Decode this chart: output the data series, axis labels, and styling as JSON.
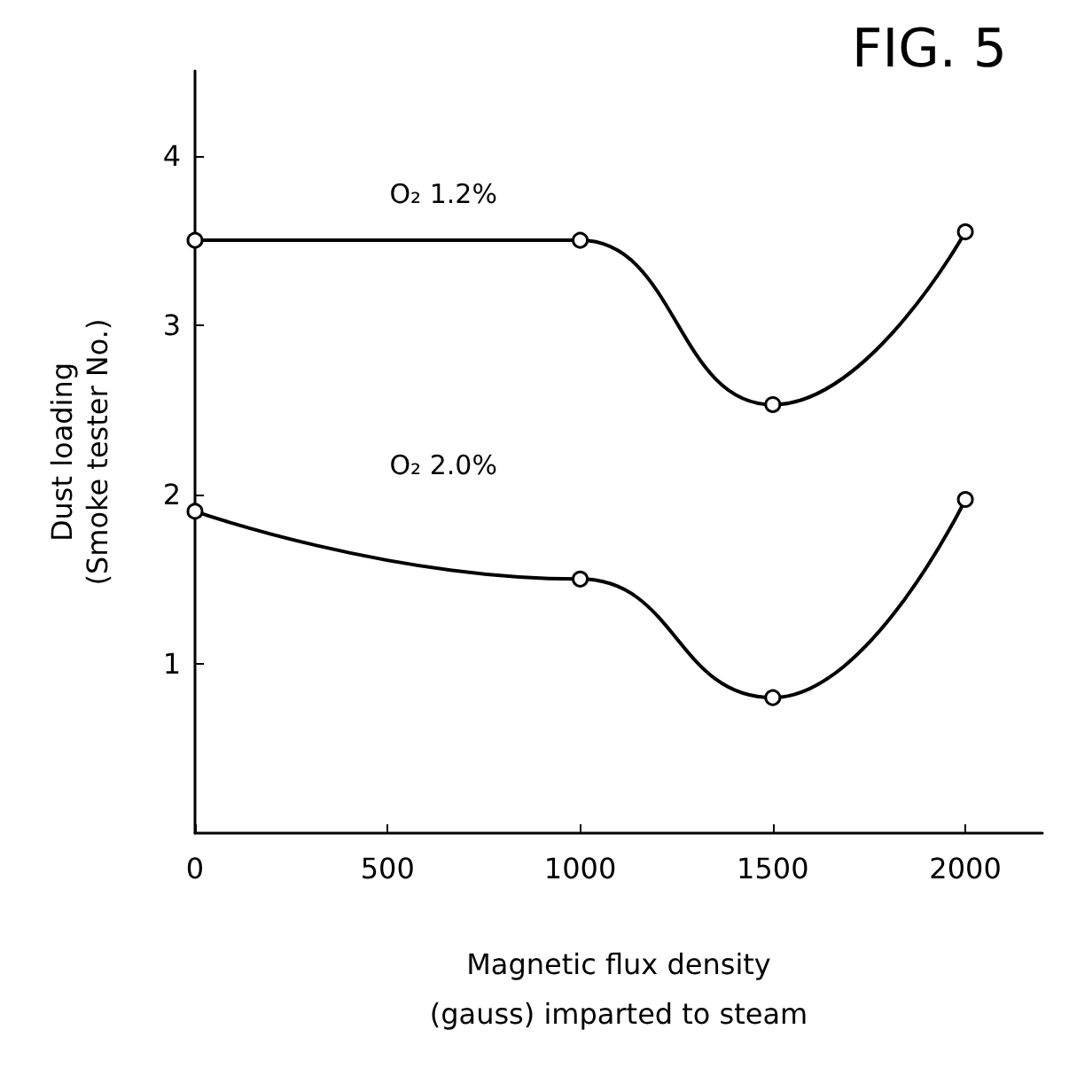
{
  "chart_data": {
    "type": "line",
    "title": "FIG. 5",
    "xlabel": "Magnetic flux density\n(gauss) imparted to steam",
    "ylabel": "Dust loading\n(Smoke tester No.)",
    "x": [
      0,
      1000,
      1500,
      2000
    ],
    "series": [
      {
        "name": "O₂ 1.2%",
        "color": "#000000",
        "values": [
          3.5,
          3.5,
          2.53,
          3.55
        ]
      },
      {
        "name": "O₂ 2.0%",
        "color": "#000000",
        "values": [
          1.9,
          1.5,
          0.8,
          1.97
        ]
      }
    ],
    "xlim": [
      0,
      2200
    ],
    "xticks": [
      0,
      500,
      1000,
      1500,
      2000
    ],
    "ylim": [
      0,
      4.5
    ],
    "yticks": [
      1,
      2,
      3,
      4
    ],
    "grid": false,
    "legend": false,
    "marker": "circle",
    "line_style": "solid"
  }
}
